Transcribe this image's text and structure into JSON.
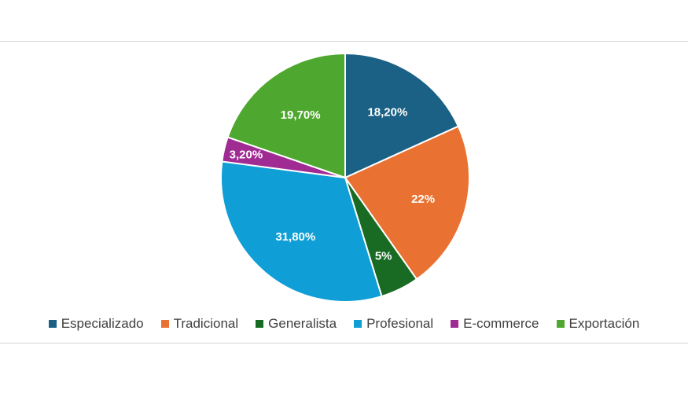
{
  "chart_data": {
    "type": "pie",
    "title": "",
    "legend_position": "bottom",
    "start_angle_deg": 0,
    "direction": "clockwise",
    "slices": [
      {
        "name": "Especializado",
        "value": 18.2,
        "label": "18,20%",
        "color": "#1a6185"
      },
      {
        "name": "Tradicional",
        "value": 22.0,
        "label": "22%",
        "color": "#e97132"
      },
      {
        "name": "Generalista",
        "value": 5.0,
        "label": "5%",
        "color": "#196b24"
      },
      {
        "name": "Profesional",
        "value": 31.8,
        "label": "31,80%",
        "color": "#0f9ed5"
      },
      {
        "name": "E-commerce",
        "value": 3.2,
        "label": "3,20%",
        "color": "#a02b93"
      },
      {
        "name": "Exportación",
        "value": 19.7,
        "label": "19,70%",
        "color": "#4ea72e"
      }
    ]
  }
}
